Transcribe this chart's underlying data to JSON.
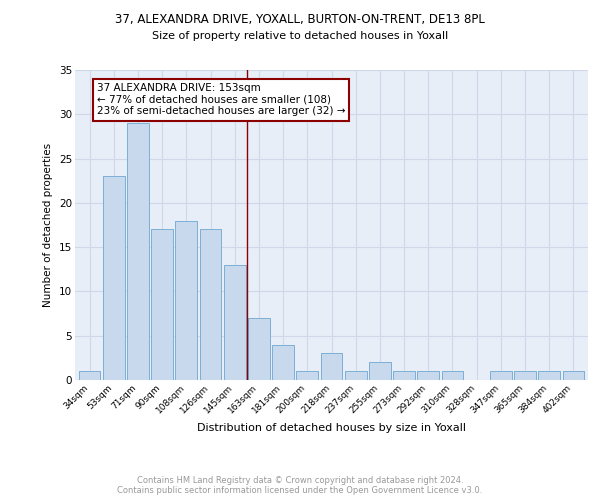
{
  "title_line1": "37, ALEXANDRA DRIVE, YOXALL, BURTON-ON-TRENT, DE13 8PL",
  "title_line2": "Size of property relative to detached houses in Yoxall",
  "xlabel": "Distribution of detached houses by size in Yoxall",
  "ylabel": "Number of detached properties",
  "categories": [
    "34sqm",
    "53sqm",
    "71sqm",
    "90sqm",
    "108sqm",
    "126sqm",
    "145sqm",
    "163sqm",
    "181sqm",
    "200sqm",
    "218sqm",
    "237sqm",
    "255sqm",
    "273sqm",
    "292sqm",
    "310sqm",
    "328sqm",
    "347sqm",
    "365sqm",
    "384sqm",
    "402sqm"
  ],
  "values": [
    1,
    23,
    29,
    17,
    18,
    17,
    13,
    7,
    4,
    1,
    3,
    1,
    2,
    1,
    1,
    1,
    0,
    1,
    1,
    1,
    1
  ],
  "bar_color": "#c9d9ed",
  "bar_edge_color": "#7bafd4",
  "vline_index": 7,
  "vline_color": "#8b0000",
  "annotation_text": "37 ALEXANDRA DRIVE: 153sqm\n← 77% of detached houses are smaller (108)\n23% of semi-detached houses are larger (32) →",
  "annotation_box_color": "white",
  "annotation_box_edge_color": "#8b0000",
  "ylim": [
    0,
    35
  ],
  "yticks": [
    0,
    5,
    10,
    15,
    20,
    25,
    30,
    35
  ],
  "grid_color": "#d0d8e8",
  "background_color": "#e8eef8",
  "footer_text": "Contains HM Land Registry data © Crown copyright and database right 2024.\nContains public sector information licensed under the Open Government Licence v3.0."
}
